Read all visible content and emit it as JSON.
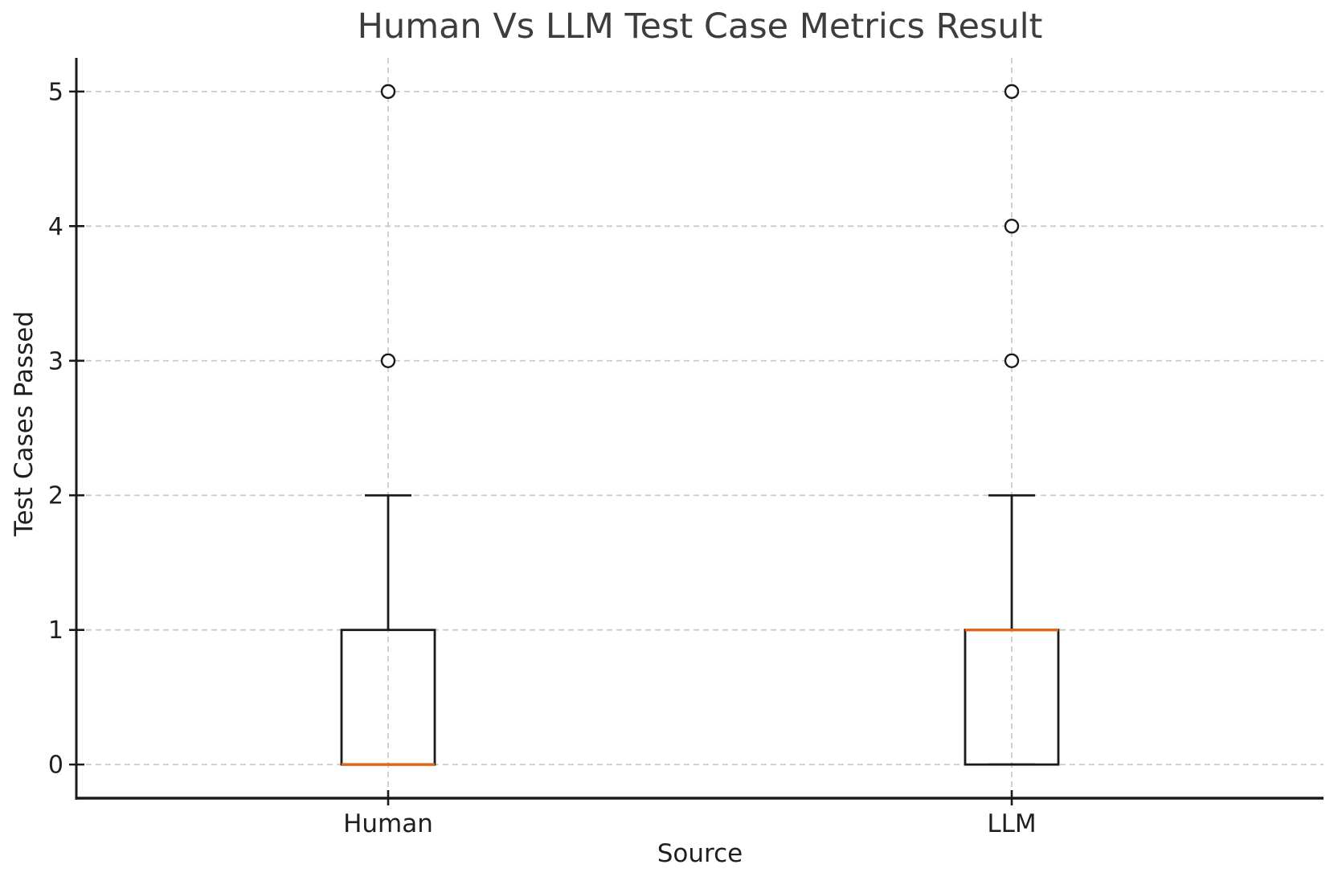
{
  "chart_data": {
    "type": "box",
    "title": "Human Vs LLM Test Case Metrics Result",
    "xlabel": "Source",
    "ylabel": "Test Cases Passed",
    "categories": [
      "Human",
      "LLM"
    ],
    "y_ticks": [
      0,
      1,
      2,
      3,
      4,
      5
    ],
    "ylim": [
      -0.25,
      5.25
    ],
    "grid": true,
    "grid_style": "dashed",
    "legend": "none",
    "series": [
      {
        "name": "Human",
        "whisker_low": 0,
        "q1": 0,
        "median": 0,
        "q3": 1,
        "whisker_high": 2,
        "outliers": [
          3,
          5
        ]
      },
      {
        "name": "LLM",
        "whisker_low": 0,
        "q1": 0,
        "median": 1,
        "q3": 1,
        "whisker_high": 2,
        "outliers": [
          3,
          4,
          5
        ]
      }
    ],
    "colors": {
      "box_edge": "#1a1a1a",
      "median": "#e0661c",
      "whisker": "#1a1a1a",
      "flier_edge": "#1a1a1a",
      "flier_fill": "#ffffff",
      "grid": "#cbcbcb",
      "spine": "#1a1a1a",
      "tick_label": "#1f1f1f",
      "title": "#3d3d3d",
      "background": "#ffffff"
    }
  }
}
